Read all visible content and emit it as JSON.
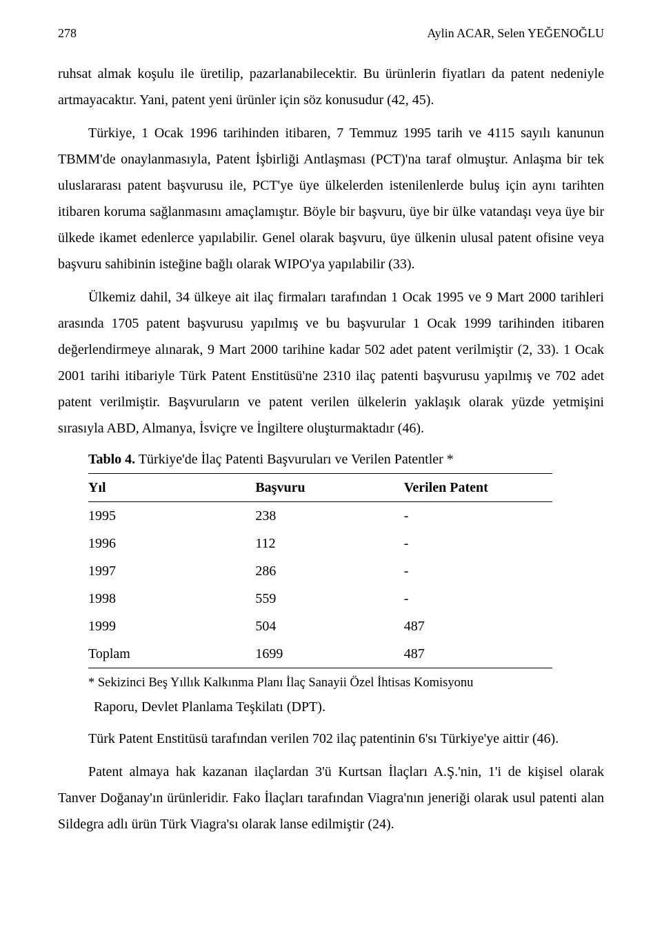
{
  "header": {
    "page_number": "278",
    "authors": "Aylin ACAR, Selen YEĞENOĞLU"
  },
  "paragraphs": {
    "p1": "ruhsat almak koşulu ile üretilip, pazarlanabilecektir. Bu ürünlerin fiyatları da patent nedeniyle artmayacaktır. Yani, patent yeni ürünler için söz konusudur (42, 45).",
    "p2": "Türkiye, 1 Ocak 1996 tarihinden itibaren, 7 Temmuz 1995 tarih ve 4115 sayılı kanunun TBMM'de onaylanmasıyla, Patent İşbirliği Antlaşması (PCT)'na taraf olmuştur. Anlaşma bir tek uluslararası patent başvurusu ile, PCT'ye üye ülkelerden istenilenlerde buluş için aynı tarihten itibaren koruma sağlanmasını amaçlamıştır. Böyle bir başvuru, üye bir ülke vatandaşı veya üye bir ülkede ikamet edenlerce yapılabilir. Genel olarak başvuru, üye ülkenin ulusal patent ofisine veya başvuru sahibinin isteğine bağlı olarak WIPO'ya yapılabilir (33).",
    "p3": "Ülkemiz dahil, 34 ülkeye ait ilaç firmaları tarafından 1 Ocak 1995 ve 9 Mart 2000 tarihleri arasında 1705 patent başvurusu yapılmış ve bu başvurular 1 Ocak 1999 tarihinden itibaren değerlendirmeye alınarak, 9 Mart 2000 tarihine kadar 502 adet patent verilmiştir (2, 33). 1 Ocak 2001 tarihi itibariyle Türk Patent Enstitüsü'ne 2310 ilaç patenti başvurusu yapılmış ve 702 adet patent verilmiştir. Başvuruların ve patent verilen ülkelerin yaklaşık olarak yüzde yetmişini sırasıyla ABD, Almanya, İsviçre ve İngiltere oluşturmaktadır (46).",
    "p4": "Türk Patent Enstitüsü tarafından verilen 702 ilaç patentinin 6'sı Türkiye'ye aittir (46).",
    "p5": "Patent almaya hak kazanan ilaçlardan 3'ü Kurtsan İlaçları A.Ş.'nin, 1'i de kişisel olarak Tanver Doğanay'ın ürünleridir. Fako İlaçları tarafından Viagra'nın jeneriği olarak usul patenti alan Sildegra adlı ürün Türk Viagra'sı olarak lanse edilmiştir (24)."
  },
  "table": {
    "caption_bold": "Tablo 4.",
    "caption_rest": " Türkiye'de İlaç Patenti Başvuruları ve Verilen Patentler *",
    "columns": [
      "Yıl",
      "Başvuru",
      "Verilen Patent"
    ],
    "rows": [
      [
        "1995",
        "238",
        "-"
      ],
      [
        "1996",
        "112",
        "-"
      ],
      [
        "1997",
        "286",
        "-"
      ],
      [
        "1998",
        "559",
        "-"
      ],
      [
        "1999",
        "504",
        "487"
      ],
      [
        "Toplam",
        "1699",
        "487"
      ]
    ],
    "footnote": "* Sekizinci Beş Yıllık Kalkınma Planı İlaç Sanayii Özel İhtisas Komisyonu",
    "source": "Raporu, Devlet Planlama Teşkilatı (DPT)."
  }
}
